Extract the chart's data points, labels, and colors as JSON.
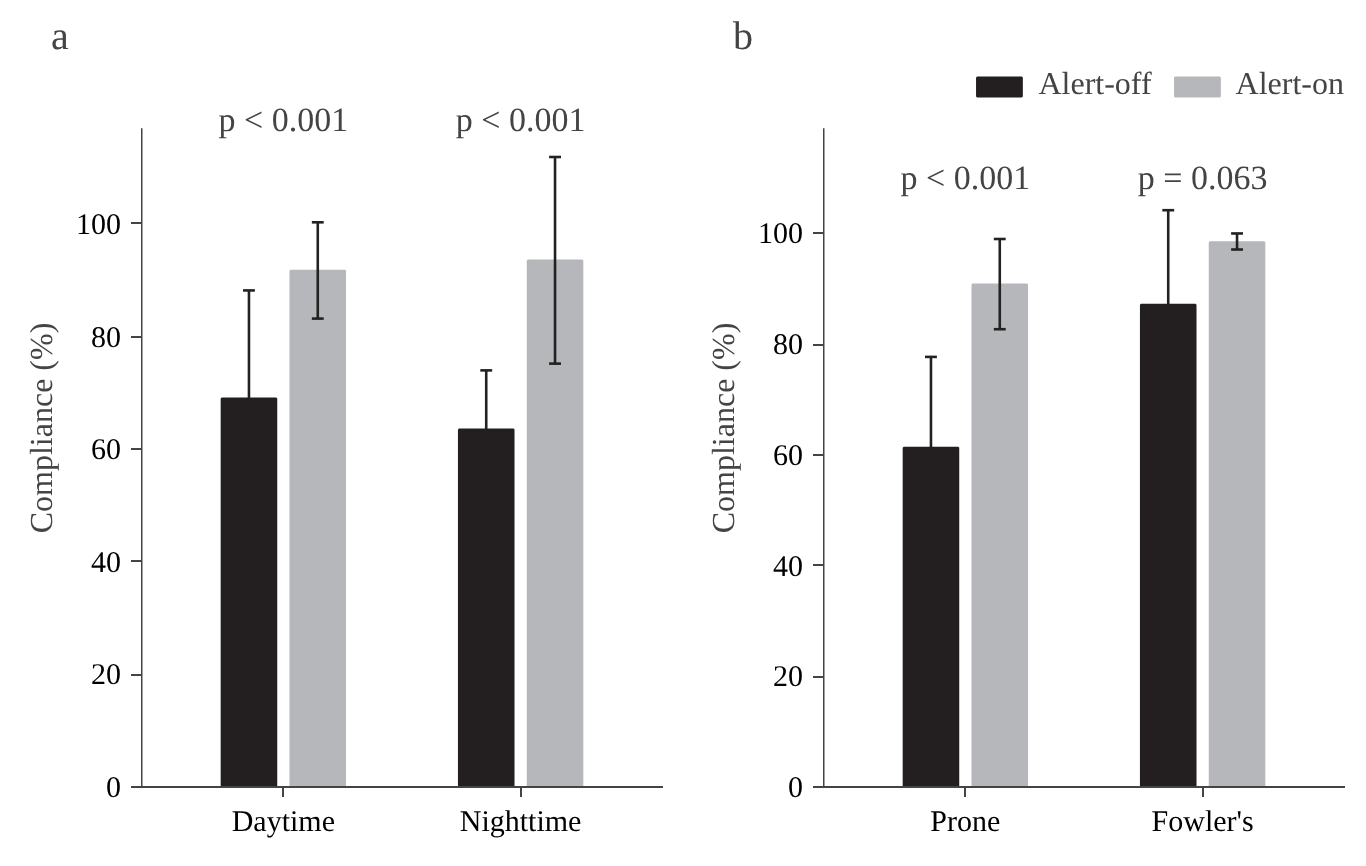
{
  "chart_data": [
    {
      "type": "bar",
      "title": "a",
      "ylabel": "Compliance (%)",
      "categories": [
        "Daytime",
        "Nighttime"
      ],
      "series": [
        {
          "color": "#231f20",
          "values": [
            69,
            63.5
          ],
          "errors": [
            [
              69,
              88.2
            ],
            [
              63.5,
              74
            ]
          ]
        },
        {
          "color": "#b6b7ba",
          "values": [
            91.7,
            93.5
          ],
          "errors": [
            [
              83.2,
              100.3
            ],
            [
              75.2,
              111.9
            ]
          ]
        }
      ],
      "ylim": [
        0,
        117
      ],
      "yticks": [
        0,
        20,
        40,
        60,
        80,
        100
      ],
      "grid": false,
      "legend": false,
      "annotations": [
        "p < 0.001",
        "p < 0.001"
      ]
    },
    {
      "type": "bar",
      "title": "b",
      "ylabel": "Compliance (%)",
      "categories": [
        "Prone",
        "Fowler's"
      ],
      "series": [
        {
          "name": "Alert-off",
          "color": "#231f20",
          "values": [
            61.3,
            87.1
          ],
          "errors": [
            [
              61.3,
              77.7
            ],
            [
              87.1,
              104.2
            ]
          ]
        },
        {
          "name": "Alert-on",
          "color": "#b6b7ba",
          "values": [
            90.8,
            98.4
          ],
          "errors": [
            [
              82.7,
              99
            ],
            [
              97.1,
              100
            ]
          ]
        }
      ],
      "ylim": [
        0,
        119
      ],
      "yticks": [
        0,
        20,
        40,
        60,
        80,
        100
      ],
      "grid": false,
      "legend": "top",
      "annotations": [
        "p < 0.001",
        "p = 0.063"
      ]
    }
  ]
}
